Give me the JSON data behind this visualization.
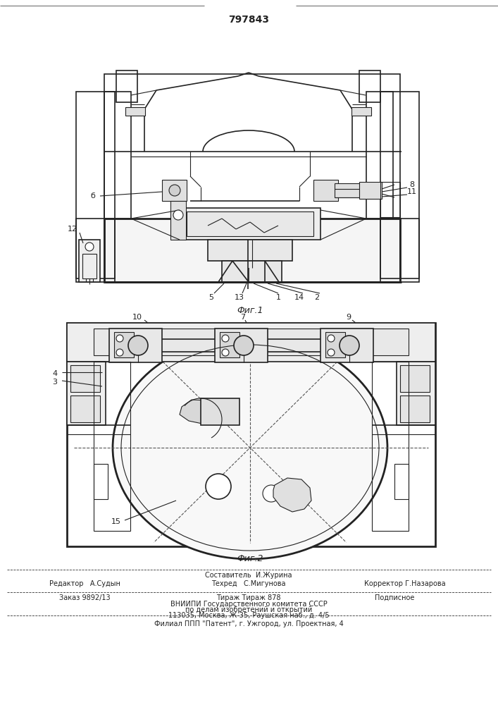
{
  "patent_number": "797843",
  "fig1_caption": "Фиг.1",
  "fig2_caption": "Фиг.2",
  "footer": {
    "line0": "Составитель  И.Журина",
    "line1_editor": "Редактор",
    "line1_editor_name": "А.Судын",
    "line1_tech": "Техред",
    "line1_tech_name": "С.Мигунова",
    "line1_corr": "Корректор",
    "line1_corr_name": "Г.Назарова",
    "line2_order": "Заказ 9892/13",
    "line2_tirazh": "Тираж Тираж 878",
    "line2_podp": "Подписное",
    "line3": "ВНИИПИ Государственного комитета СССР",
    "line4": "по делам изобретений и открытий",
    "line5": "113035, Москва, Ж-35, Раушская наб., д. 4/5",
    "line6": "Филиал ППП \"Патент\", г. Ужгород, ул. Проектная, 4"
  },
  "bg_color": "#ffffff",
  "lc": "#222222"
}
